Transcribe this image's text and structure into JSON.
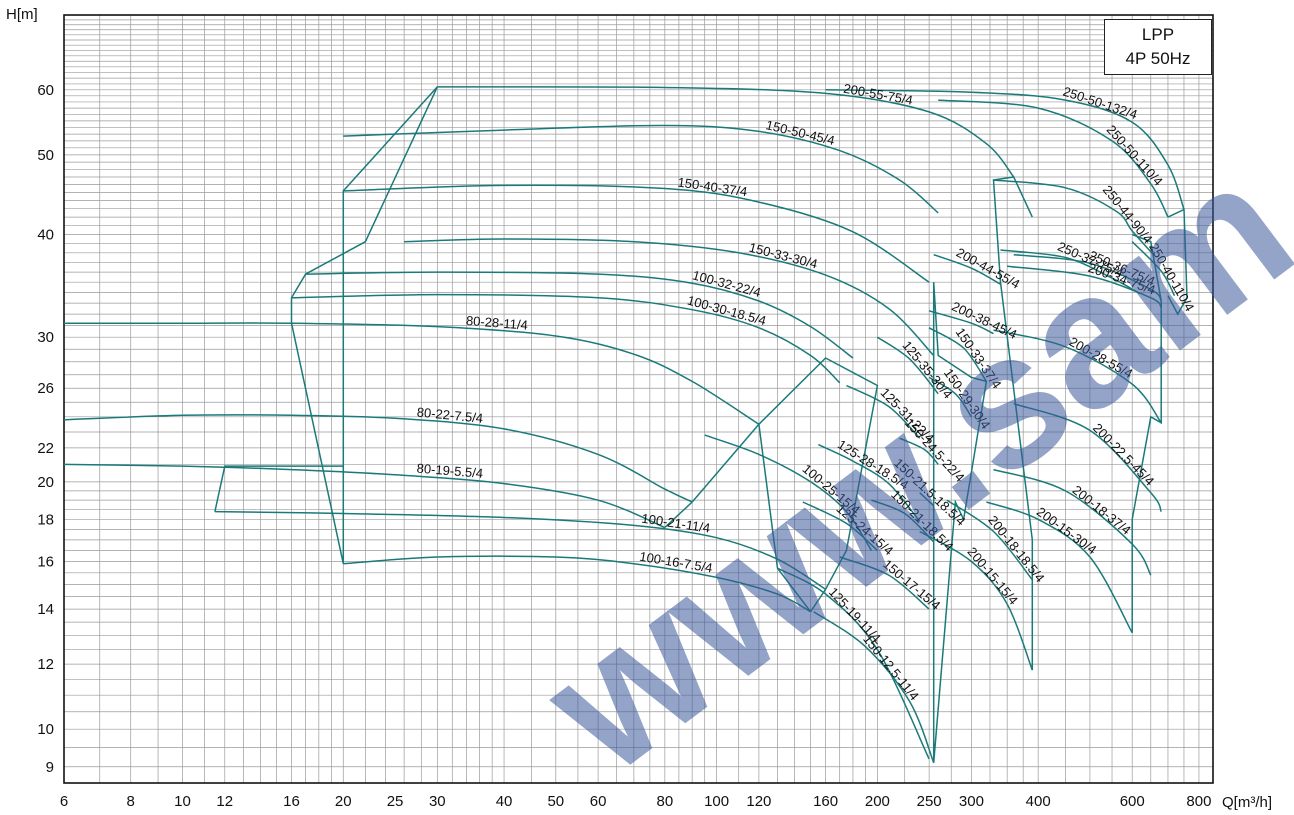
{
  "chart_data": {
    "type": "line",
    "title": "",
    "legend_box": {
      "line1": "LPP",
      "line2": "4P 50Hz"
    },
    "xlabel": "Q[m³/h]",
    "ylabel": "H[m]",
    "x_scale": "log",
    "y_scale": "log",
    "xlim": [
      6,
      850
    ],
    "ylim": [
      8.6,
      74
    ],
    "grid": true,
    "x_ticks": [
      6,
      8,
      10,
      12,
      16,
      20,
      25,
      30,
      40,
      50,
      60,
      80,
      100,
      120,
      160,
      200,
      250,
      300,
      400,
      600,
      800
    ],
    "y_ticks": [
      9,
      10,
      12,
      14,
      16,
      18,
      20,
      22,
      26,
      30,
      40,
      50,
      60
    ],
    "curve_color": "#1a7a7a",
    "watermark": {
      "text": "www.sam",
      "color": "#3b5a9a"
    },
    "series": [
      {
        "name": "80-22-7.5/4",
        "x": [
          6,
          10,
          16,
          25,
          40,
          60,
          80,
          90
        ],
        "y": [
          23.8,
          24.1,
          24.1,
          23.9,
          23.2,
          21.6,
          19.6,
          18.9
        ]
      },
      {
        "name": "80-19-5.5/4",
        "x": [
          6,
          10,
          16,
          25,
          40,
          60,
          80
        ],
        "y": [
          21,
          20.9,
          20.7,
          20.4,
          19.9,
          19.0,
          17.6
        ]
      },
      {
        "name": "80-28-11/4",
        "x": [
          6,
          10,
          16,
          30,
          50,
          70,
          90,
          120
        ],
        "y": [
          31.2,
          31.2,
          31.2,
          30.9,
          30.1,
          28.6,
          26.5,
          23.5
        ]
      },
      {
        "name": "100-16-7.5/4",
        "x": [
          20,
          30,
          50,
          70,
          100,
          130,
          150
        ],
        "y": [
          15.9,
          16.2,
          16.2,
          15.9,
          15.3,
          14.6,
          13.9
        ]
      },
      {
        "name": "100-21-11/4",
        "x": [
          11.5,
          20,
          40,
          70,
          100,
          130,
          160
        ],
        "y": [
          18.4,
          18.3,
          18.1,
          17.7,
          17.1,
          16.1,
          14.8
        ]
      },
      {
        "name": "100-25-15/4",
        "x": [
          95,
          120,
          150,
          175,
          195
        ],
        "y": [
          22.8,
          21.6,
          20.0,
          18.4,
          16.5
        ]
      },
      {
        "name": "100-30-18.5/4",
        "x": [
          16,
          30,
          60,
          90,
          120,
          150,
          170
        ],
        "y": [
          33.5,
          33.8,
          33.5,
          32.4,
          30.8,
          28.5,
          26.4
        ]
      },
      {
        "name": "100-32-22/4",
        "x": [
          17,
          30,
          60,
          90,
          120,
          150,
          180
        ],
        "y": [
          35.8,
          36.0,
          35.8,
          34.9,
          33.2,
          30.9,
          28.3
        ]
      },
      {
        "name": "125-19-11/4",
        "x": [
          130,
          160,
          200,
          250
        ],
        "y": [
          15.7,
          14.6,
          12.5,
          9.2
        ]
      },
      {
        "name": "125-24-15/4",
        "x": [
          145,
          175,
          200
        ],
        "y": [
          18.9,
          17.8,
          16.5
        ]
      },
      {
        "name": "125-28-18.5/4",
        "x": [
          155,
          180,
          210,
          240
        ],
        "y": [
          22.2,
          21.2,
          19.9,
          17.9
        ]
      },
      {
        "name": "125-31-22/4",
        "x": [
          175,
          210,
          240
        ],
        "y": [
          26.2,
          24.7,
          22.6
        ]
      },
      {
        "name": "125-35-30/4",
        "x": [
          200,
          230,
          260
        ],
        "y": [
          30.0,
          28.2,
          25.6
        ]
      },
      {
        "name": "150-12.5-11/4",
        "x": [
          152,
          190,
          230,
          255
        ],
        "y": [
          13.9,
          12.6,
          10.8,
          9.1
        ]
      },
      {
        "name": "150-17-15/4",
        "x": [
          170,
          210,
          250
        ],
        "y": [
          16.2,
          15.4,
          14.0
        ]
      },
      {
        "name": "150-21-18.5/4",
        "x": [
          195,
          225,
          255
        ],
        "y": [
          19.0,
          18.3,
          16.9
        ]
      },
      {
        "name": "150-21.5-18.5/4",
        "x": [
          240,
          255
        ],
        "y": [
          19.4,
          18.7
        ]
      },
      {
        "name": "150-24.5-22/4",
        "x": [
          220,
          245,
          260
        ],
        "y": [
          22.6,
          21.9,
          21.0
        ]
      },
      {
        "name": "150-29-30/4",
        "x": [
          250,
          280,
          300
        ],
        "y": [
          26.8,
          25.6,
          24.0
        ]
      },
      {
        "name": "150-33-30/4",
        "x": [
          26,
          40,
          70,
          110,
          160,
          210,
          255
        ],
        "y": [
          39.2,
          39.5,
          39.2,
          38.0,
          35.7,
          32.5,
          28.5
        ]
      },
      {
        "name": "150-33-37/4",
        "x": [
          250,
          290,
          320
        ],
        "y": [
          30.8,
          29.1,
          26.5
        ]
      },
      {
        "name": "150-40-37/4",
        "x": [
          20,
          40,
          80,
          120,
          180,
          250
        ],
        "y": [
          45.2,
          45.9,
          45.5,
          43.8,
          40.3,
          35.0
        ]
      },
      {
        "name": "150-50-45/4",
        "x": [
          20,
          40,
          80,
          120,
          170,
          220,
          260
        ],
        "y": [
          52.7,
          53.6,
          54.3,
          53.4,
          50.6,
          46.6,
          42.5
        ]
      },
      {
        "name": "200-15-15/4",
        "x": [
          240,
          300,
          350,
          390
        ],
        "y": [
          17.4,
          16.0,
          14.2,
          11.8
        ]
      },
      {
        "name": "200-15-30/4",
        "x": [
          320,
          400,
          500,
          600
        ],
        "y": [
          18.9,
          18.0,
          16.2,
          13.1
        ]
      },
      {
        "name": "200-18-18.5/4",
        "x": [
          270,
          330,
          390
        ],
        "y": [
          19.0,
          17.4,
          15.2
        ]
      },
      {
        "name": "200-18-37/4",
        "x": [
          330,
          450,
          600,
          650
        ],
        "y": [
          20.7,
          19.5,
          16.8,
          15.4
        ]
      },
      {
        "name": "200-22.5-45/4",
        "x": [
          360,
          500,
          650,
          680
        ],
        "y": [
          24.9,
          23.1,
          19.4,
          18.4
        ]
      },
      {
        "name": "200-28-55/4",
        "x": [
          330,
          450,
          600,
          680
        ],
        "y": [
          30.6,
          29.2,
          26.3,
          23.6
        ]
      },
      {
        "name": "200-34-75/4",
        "x": [
          350,
          500,
          650,
          680
        ],
        "y": [
          36.6,
          35.6,
          33.5,
          32.6
        ]
      },
      {
        "name": "200-38-45/4",
        "x": [
          250,
          300,
          330
        ],
        "y": [
          32.3,
          31.2,
          30.3
        ]
      },
      {
        "name": "200-44-55/4",
        "x": [
          255,
          300,
          340
        ],
        "y": [
          37.8,
          36.4,
          34.8
        ]
      },
      {
        "name": "200-55-75/4",
        "x": [
          30,
          80,
          160,
          250,
          320,
          360
        ],
        "y": [
          60.5,
          60.4,
          59.4,
          56.4,
          51.6,
          47.0
        ]
      },
      {
        "name": "250-36-75/4",
        "x": [
          360,
          500,
          650,
          680
        ],
        "y": [
          37.8,
          36.9,
          34.3,
          33.2
        ]
      },
      {
        "name": "250-37-75/4",
        "x": [
          340,
          450,
          550,
          620
        ],
        "y": [
          38.3,
          37.5,
          35.4,
          33.9
        ]
      },
      {
        "name": "250-40-110/4",
        "x": [
          600,
          680,
          720
        ],
        "y": [
          39.2,
          36.1,
          33.7
        ]
      },
      {
        "name": "250-44-90/4",
        "x": [
          330,
          450,
          560,
          600,
          660
        ],
        "y": [
          46.6,
          45.6,
          42.7,
          40.4,
          37.7
        ]
      },
      {
        "name": "250-50-110/4",
        "x": [
          260,
          400,
          550,
          650,
          700
        ],
        "y": [
          58.3,
          57.0,
          52.0,
          46.1,
          42.0
        ]
      },
      {
        "name": "250-50-132/4",
        "x": [
          160,
          300,
          450,
          600,
          700,
          750
        ],
        "y": [
          60.0,
          59.6,
          58.3,
          54.8,
          48.6,
          42.9
        ]
      }
    ],
    "envelopes": [
      {
        "x": [
          20,
          20,
          30,
          22,
          17,
          16,
          16,
          20
        ],
        "y": [
          15.9,
          45.2,
          60.5,
          39.2,
          35.8,
          33.5,
          31.2,
          15.9
        ]
      },
      {
        "x": [
          11.5,
          12,
          20
        ],
        "y": [
          18.4,
          20.9,
          20.9
        ]
      },
      {
        "x": [
          80,
          90,
          120,
          90,
          80
        ],
        "y": [
          17.6,
          18.9,
          23.5,
          18.9,
          17.6
        ]
      },
      {
        "x": [
          150,
          130,
          120,
          160,
          200,
          175,
          160,
          150
        ],
        "y": [
          13.9,
          15.7,
          23.5,
          28.3,
          26.2,
          16.5,
          14.8,
          13.9
        ]
      },
      {
        "x": [
          255,
          255,
          260,
          300,
          320,
          290,
          280,
          255
        ],
        "y": [
          9.1,
          35.0,
          28.5,
          26.8,
          26.5,
          18.0,
          18.9,
          9.1
        ]
      },
      {
        "x": [
          390,
          390,
          340,
          330,
          360,
          390
        ],
        "y": [
          11.8,
          17.0,
          35.0,
          46.6,
          47.0,
          42.0
        ]
      },
      {
        "x": [
          600,
          600,
          650,
          680,
          680,
          650,
          600
        ],
        "y": [
          13.1,
          18.0,
          24.0,
          23.6,
          33.2,
          39.2,
          40.0
        ]
      },
      {
        "x": [
          700,
          750,
          760,
          730,
          700
        ],
        "y": [
          42.0,
          42.9,
          33.5,
          32.0,
          33.7
        ]
      }
    ]
  }
}
